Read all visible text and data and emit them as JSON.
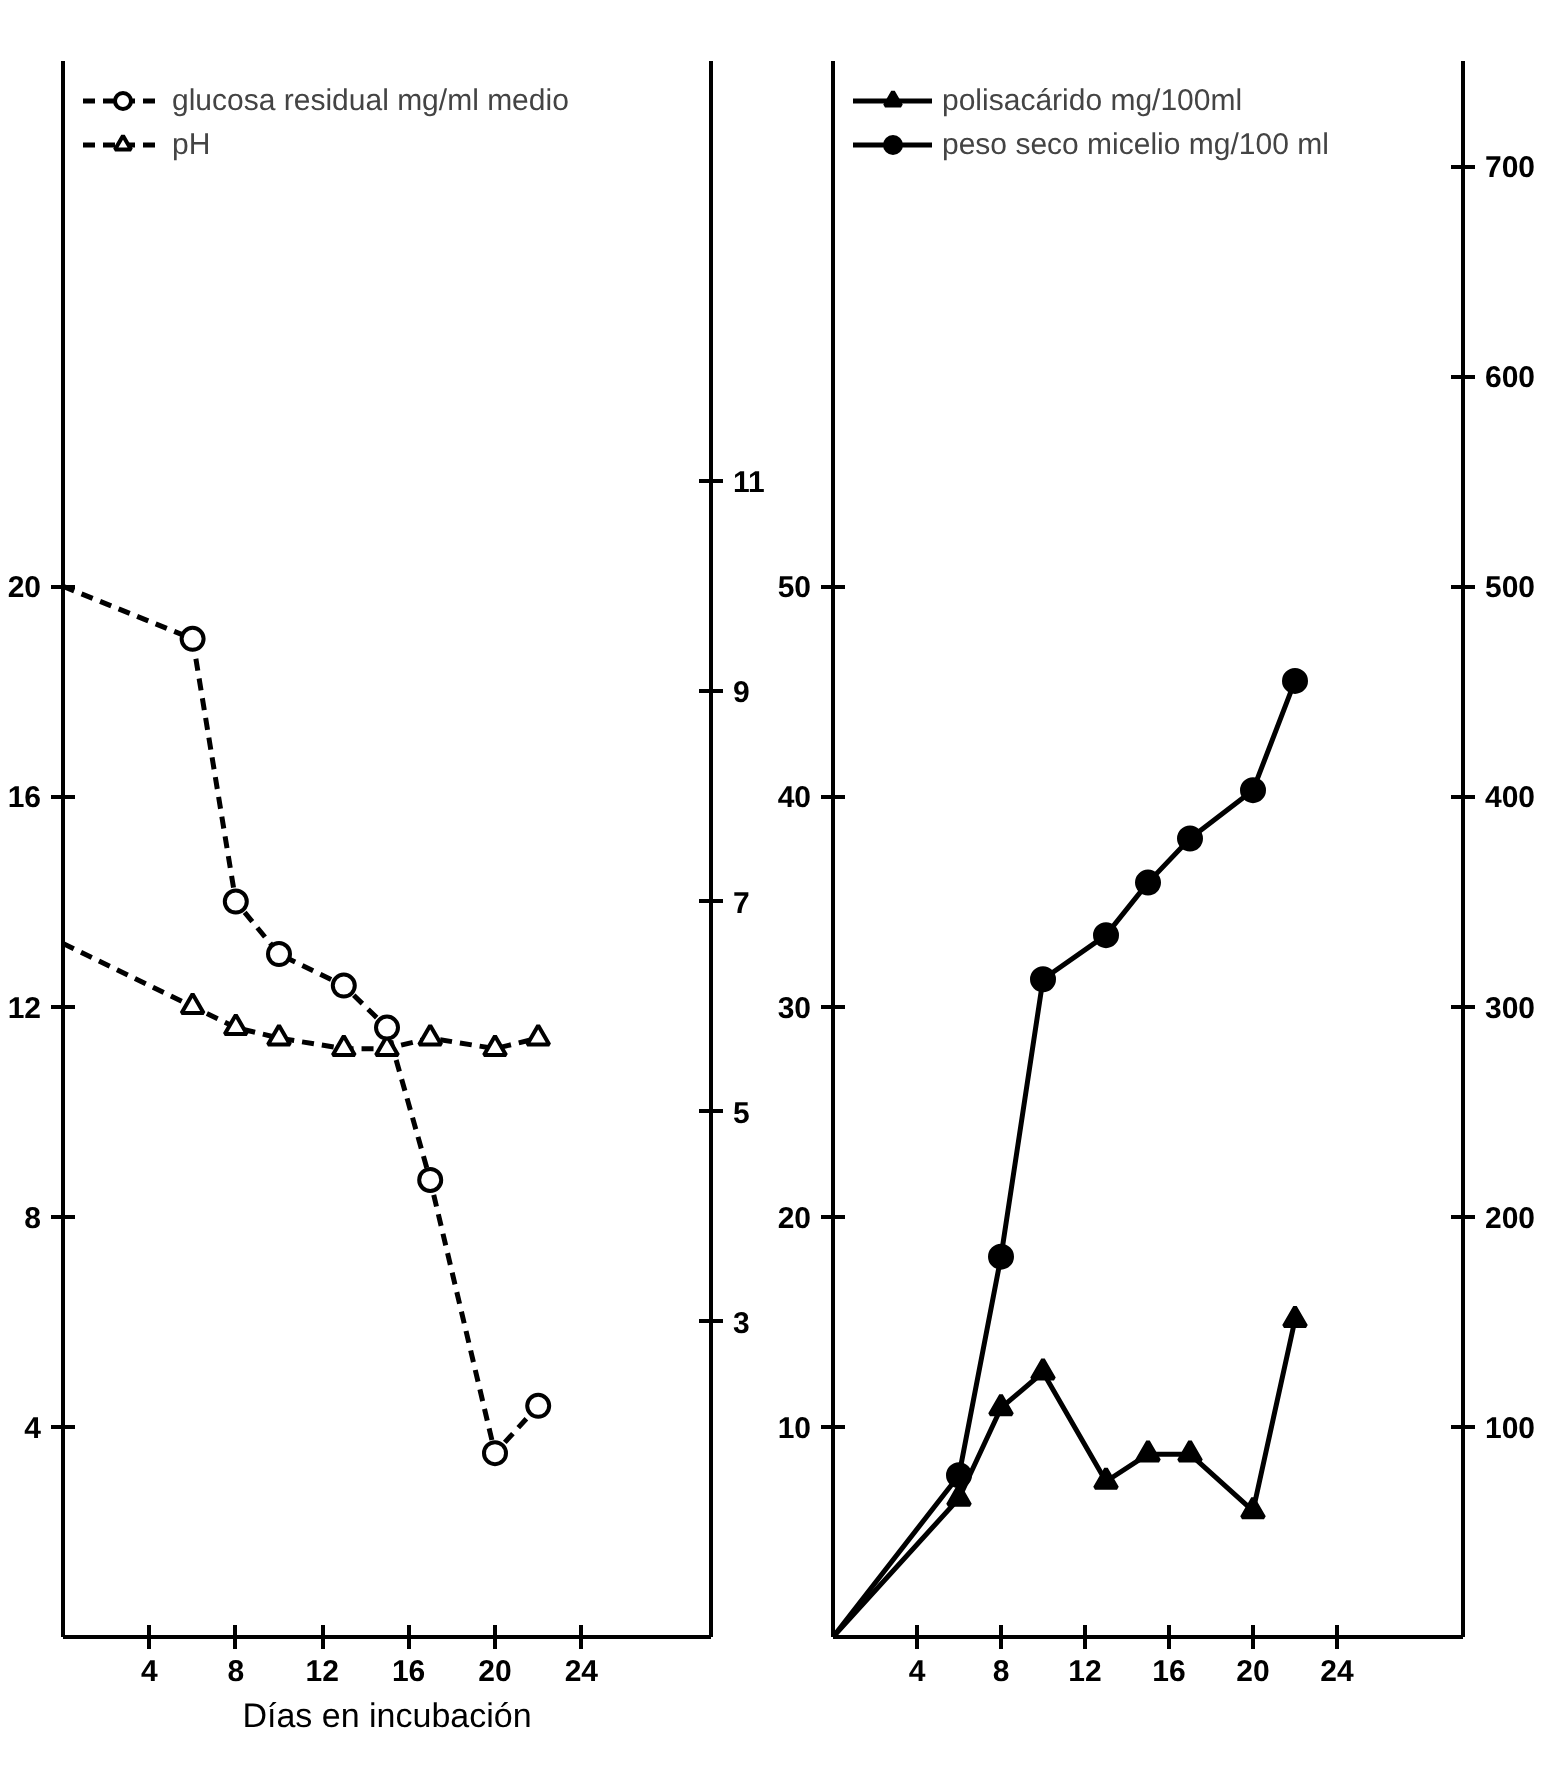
{
  "chart_data": [
    {
      "type": "line",
      "xlabel": "Días en incubación",
      "legend": "top left",
      "xlim": [
        0,
        30
      ],
      "xticks": [
        4,
        8,
        12,
        16,
        20,
        24
      ],
      "ylim": [
        0,
        30
      ],
      "yticks": [
        4,
        8,
        12,
        16,
        20
      ],
      "y2lim": [
        0,
        15
      ],
      "y2ticks": [
        3,
        5,
        7,
        9,
        11
      ],
      "series": [
        {
          "name": "glucosa residual mg/ml medio",
          "color": "#000000",
          "marker": "circle",
          "line_style": "dashed",
          "x": [
            0,
            6,
            8,
            10,
            13,
            15,
            17,
            20,
            22
          ],
          "values": [
            20,
            19,
            14,
            13,
            12.4,
            11.6,
            8.7,
            3.5,
            4.4
          ]
        },
        {
          "name": "pH",
          "color": "#000000",
          "marker": "triangle",
          "line_style": "dashed",
          "axis": "y2",
          "x": [
            0,
            6,
            8,
            10,
            13,
            15,
            17,
            20,
            22
          ],
          "values": [
            6.6,
            6.0,
            5.8,
            5.7,
            5.6,
            5.6,
            5.7,
            5.6,
            5.7
          ]
        }
      ]
    },
    {
      "type": "line",
      "legend": "top left",
      "xlim": [
        0,
        30
      ],
      "xticks": [
        4,
        8,
        12,
        16,
        20,
        24
      ],
      "ylim": [
        0,
        75
      ],
      "yticks": [
        10,
        20,
        30,
        40,
        50
      ],
      "y2lim": [
        0,
        750
      ],
      "y2ticks": [
        100,
        200,
        300,
        400,
        500,
        600,
        700
      ],
      "series": [
        {
          "name": "polisacárido mg/100ml",
          "color": "#000000",
          "marker": "triangle",
          "line_style": "solid",
          "x": [
            0,
            6,
            8,
            10,
            13,
            15,
            17,
            20,
            22
          ],
          "values": [
            0,
            6.6,
            10.9,
            12.6,
            7.4,
            8.7,
            8.7,
            6.0,
            15.1
          ]
        },
        {
          "name": "peso seco micelio mg/100 ml",
          "color": "#000000",
          "marker": "circle",
          "line_style": "solid",
          "axis": "y2",
          "x": [
            0,
            6,
            8,
            10,
            13,
            15,
            17,
            20,
            22
          ],
          "values": [
            0,
            77,
            181,
            313,
            334,
            359,
            380,
            403,
            455
          ]
        }
      ]
    }
  ]
}
